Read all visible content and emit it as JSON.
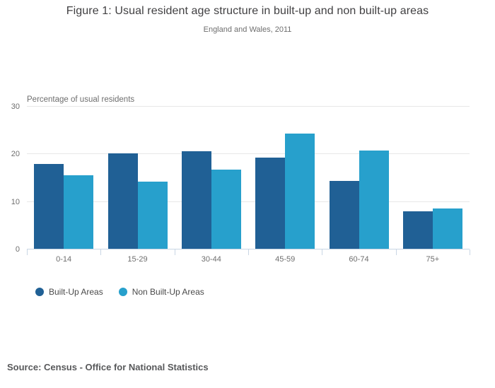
{
  "header": {
    "title": "Figure 1: Usual resident age structure in built-up and non built-up areas",
    "subtitle": "England and Wales, 2011"
  },
  "chart_data": {
    "type": "bar",
    "title": "Figure 1: Usual resident age structure in built-up and non built-up areas",
    "subtitle": "England and Wales, 2011",
    "categories": [
      "0-14",
      "15-29",
      "30-44",
      "45-59",
      "60-74",
      "75+"
    ],
    "series": [
      {
        "name": "Built-Up Areas",
        "color": "#206095",
        "values": [
          17.8,
          20.1,
          20.5,
          19.1,
          14.3,
          7.8
        ]
      },
      {
        "name": "Non Built-Up Areas",
        "color": "#27a0cc",
        "values": [
          15.4,
          14.1,
          16.7,
          24.2,
          20.6,
          8.4
        ]
      }
    ],
    "xlabel": "",
    "ylabel": "Percentage of usual residents",
    "y_ticks": [
      0,
      10,
      20,
      30
    ],
    "ylim": [
      0,
      30
    ],
    "grid": true,
    "legend_position": "bottom-left"
  },
  "colors": {
    "series_dark": "#206095",
    "series_light": "#27a0cc",
    "gridline": "#e8e8e8",
    "axis_line": "#c9d6e4",
    "axis_text": "#6e6e6e",
    "title_text": "#414042",
    "source_text": "#58595b"
  },
  "footer": {
    "source": "Source: Census - Office for National Statistics"
  }
}
